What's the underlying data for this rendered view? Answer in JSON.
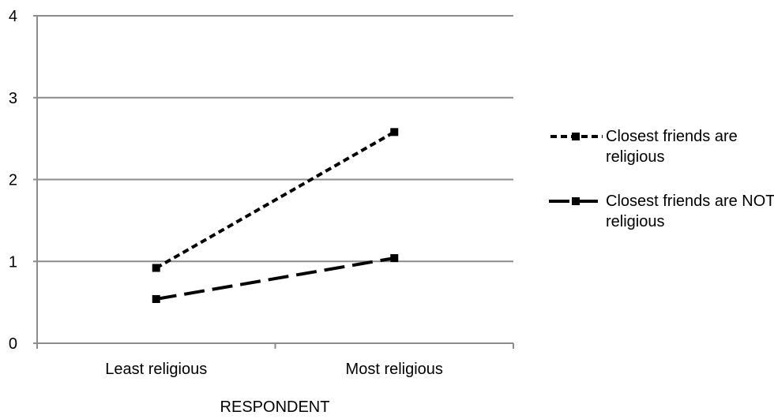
{
  "chart_data": {
    "type": "line",
    "categories": [
      "Least religious",
      "Most religious"
    ],
    "series": [
      {
        "name": "Closest friends are religious",
        "values": [
          0.92,
          2.58
        ],
        "dash": "short"
      },
      {
        "name": "Closest friends are NOT religious",
        "values": [
          0.54,
          1.04
        ],
        "dash": "long"
      }
    ],
    "xlabel": "RESPONDENT",
    "ylabel": "",
    "ylim": [
      0,
      4
    ],
    "yticks": [
      "0",
      "1",
      "2",
      "3",
      "4"
    ],
    "grid": true,
    "legend_position": "right",
    "colors": {
      "line": "#000000",
      "grid": "#8c8c8c"
    }
  }
}
